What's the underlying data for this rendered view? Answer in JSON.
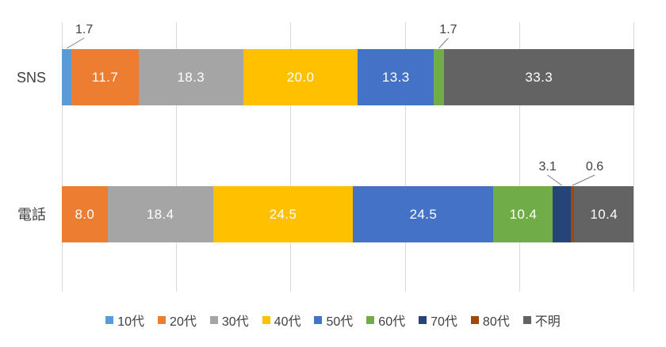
{
  "chart_data": {
    "type": "bar",
    "orientation": "horizontal",
    "stacked": true,
    "unit": "percent",
    "title": "",
    "xlabel": "",
    "ylabel": "",
    "xlim": [
      0,
      100
    ],
    "grid": true,
    "gridline_interval": 20,
    "legend_position": "bottom",
    "categories": [
      "SNS",
      "電話"
    ],
    "series": [
      {
        "name": "10代",
        "color": "#5B9BD5",
        "values": [
          1.7,
          0
        ],
        "labels": [
          "1.7",
          ""
        ]
      },
      {
        "name": "20代",
        "color": "#ED7D31",
        "values": [
          11.7,
          8.0
        ],
        "labels": [
          "11.7",
          "8.0"
        ]
      },
      {
        "name": "30代",
        "color": "#A5A5A5",
        "values": [
          18.3,
          18.4
        ],
        "labels": [
          "18.3",
          "18.4"
        ]
      },
      {
        "name": "40代",
        "color": "#FFC000",
        "values": [
          20.0,
          24.5
        ],
        "labels": [
          "20.0",
          "24.5"
        ]
      },
      {
        "name": "50代",
        "color": "#4472C4",
        "values": [
          13.3,
          24.5
        ],
        "labels": [
          "13.3",
          "24.5"
        ]
      },
      {
        "name": "60代",
        "color": "#70AD47",
        "values": [
          1.7,
          10.4
        ],
        "labels": [
          "1.7",
          "10.4"
        ]
      },
      {
        "name": "70代",
        "color": "#264478",
        "values": [
          0,
          3.1
        ],
        "labels": [
          "",
          "3.1"
        ]
      },
      {
        "name": "80代",
        "color": "#9E480E",
        "values": [
          0,
          0.6
        ],
        "labels": [
          "",
          "0.6"
        ]
      },
      {
        "name": "不明",
        "color": "#636363",
        "values": [
          33.3,
          10.4
        ],
        "labels": [
          "33.3",
          "10.4"
        ]
      }
    ],
    "style_colors": {
      "gridline": "#D9D9D9",
      "data_label_inside": "#FFFFFF",
      "data_label_outside": "#404040",
      "leader_line": "#7F7F7F",
      "axis_text": "#404040"
    }
  }
}
